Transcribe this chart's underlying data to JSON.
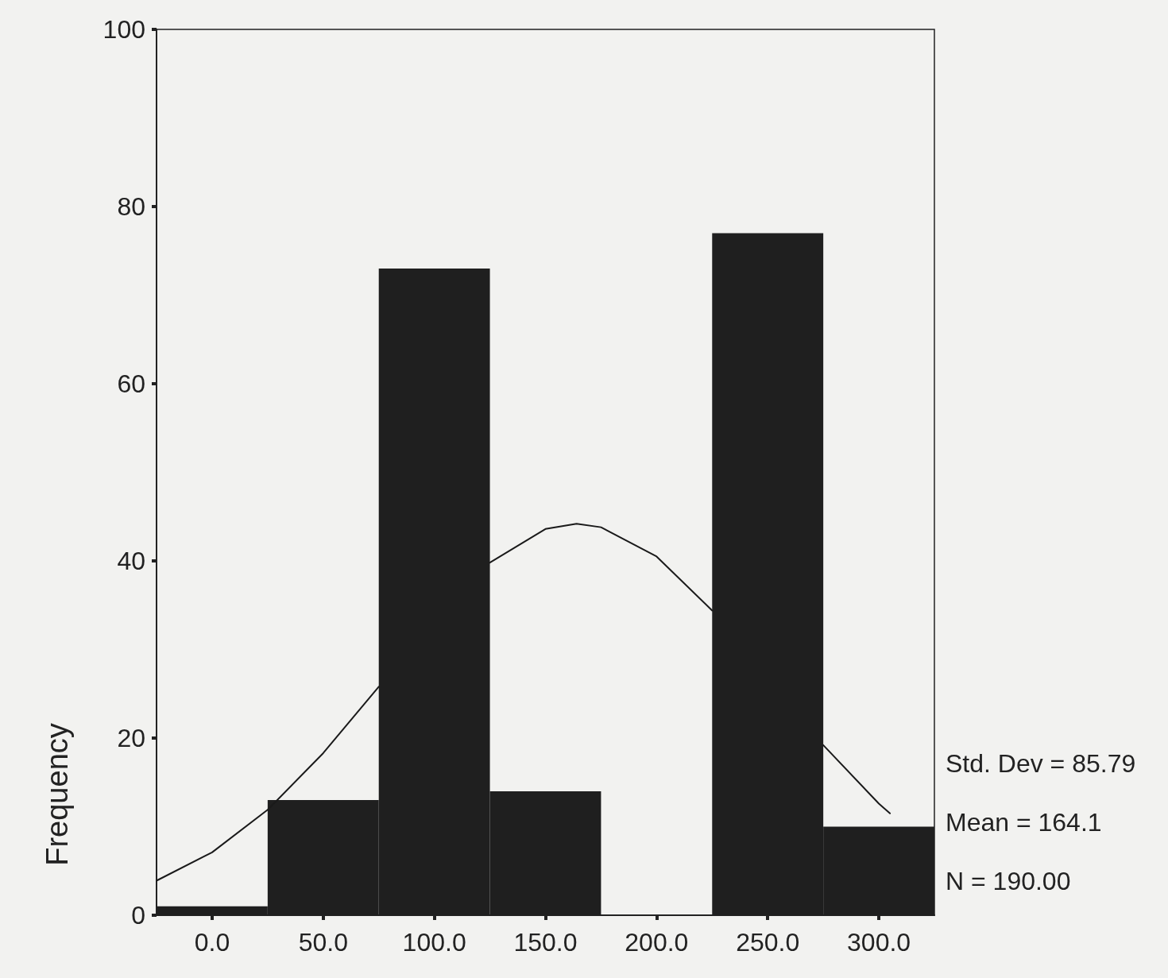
{
  "chart_data": {
    "type": "histogram",
    "ylabel": "Frequency",
    "bins": [
      -25,
      25,
      75,
      125,
      175,
      225,
      275,
      325
    ],
    "values": [
      1,
      13,
      73,
      14,
      0,
      77,
      10
    ],
    "color": "#1f1f1f",
    "series": [
      {
        "type": "line",
        "color": "#1a1a1a",
        "x": [
          -25,
          0,
          25,
          50,
          75,
          100,
          125,
          150,
          164,
          175,
          200,
          225,
          250,
          275,
          300,
          305
        ],
        "values": [
          3.9,
          7.1,
          11.9,
          18.3,
          25.8,
          null,
          39.8,
          43.6,
          44.2,
          43.8,
          40.5,
          34.4,
          null,
          19.2,
          12.6,
          11.5
        ]
      }
    ],
    "marker": "none",
    "line_style": "solid",
    "xlim": [
      -25,
      325
    ],
    "xticks": [
      {
        "value": 0,
        "label": "0.0"
      },
      {
        "value": 50,
        "label": "50.0"
      },
      {
        "value": 100,
        "label": "100.0"
      },
      {
        "value": 150,
        "label": "150.0"
      },
      {
        "value": 200,
        "label": "200.0"
      },
      {
        "value": 250,
        "label": "250.0"
      },
      {
        "value": 300,
        "label": "300.0"
      }
    ],
    "ylim": [
      0,
      100
    ],
    "yticks": [
      0,
      20,
      40,
      60,
      80,
      100
    ],
    "grid": false,
    "annotations": [
      "Std. Dev = 85.79",
      "Mean = 164.1",
      "N = 190.00"
    ]
  }
}
